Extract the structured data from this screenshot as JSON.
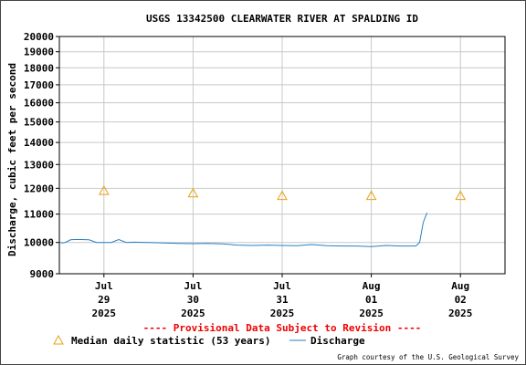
{
  "chart_data": {
    "type": "line",
    "title": "USGS 13342500 CLEARWATER RIVER AT SPALDING ID",
    "ylabel": "Discharge, cubic feet per second",
    "xlabel": "",
    "y_scale": "log",
    "ylim": [
      9000,
      20000
    ],
    "y_ticks": [
      9000,
      10000,
      11000,
      12000,
      13000,
      14000,
      15000,
      16000,
      17000,
      18000,
      19000,
      20000
    ],
    "xlim": [
      "2025-07-28 12:00",
      "2025-08-02 12:00"
    ],
    "x_ticks": [
      {
        "at": "2025-07-29 00:00",
        "lines": [
          "Jul",
          "29",
          "2025"
        ]
      },
      {
        "at": "2025-07-30 00:00",
        "lines": [
          "Jul",
          "30",
          "2025"
        ]
      },
      {
        "at": "2025-07-31 00:00",
        "lines": [
          "Jul",
          "31",
          "2025"
        ]
      },
      {
        "at": "2025-08-01 00:00",
        "lines": [
          "Aug",
          "01",
          "2025"
        ]
      },
      {
        "at": "2025-08-02 00:00",
        "lines": [
          "Aug",
          "02",
          "2025"
        ]
      }
    ],
    "grid": true,
    "legend_position": "bottom",
    "series": [
      {
        "name": "Median daily statistic (53 years)",
        "marker": "triangle",
        "color": "#e8a10f",
        "x": [
          "2025-07-29 00:00",
          "2025-07-30 00:00",
          "2025-07-31 00:00",
          "2025-08-01 00:00",
          "2025-08-02 00:00"
        ],
        "y": [
          11900,
          11800,
          11700,
          11700,
          11700
        ]
      },
      {
        "name": "Discharge",
        "marker": "line",
        "color": "#2a7fc0",
        "x": [
          "2025-07-28 12:00",
          "2025-07-28 13:00",
          "2025-07-28 14:00",
          "2025-07-28 15:00",
          "2025-07-28 16:00",
          "2025-07-28 18:00",
          "2025-07-28 20:00",
          "2025-07-28 22:00",
          "2025-07-29 02:00",
          "2025-07-29 04:00",
          "2025-07-29 06:00",
          "2025-07-29 08:00",
          "2025-07-29 12:00",
          "2025-07-29 16:00",
          "2025-07-29 20:00",
          "2025-07-30 00:00",
          "2025-07-30 04:00",
          "2025-07-30 08:00",
          "2025-07-30 12:00",
          "2025-07-30 16:00",
          "2025-07-30 20:00",
          "2025-07-31 00:00",
          "2025-07-31 04:00",
          "2025-07-31 08:00",
          "2025-07-31 12:00",
          "2025-07-31 16:00",
          "2025-07-31 20:00",
          "2025-08-01 00:00",
          "2025-08-01 04:00",
          "2025-08-01 08:00",
          "2025-08-01 12:00",
          "2025-08-01 13:00",
          "2025-08-01 14:00",
          "2025-08-01 15:00"
        ],
        "y": [
          10000,
          9980,
          10020,
          10090,
          10100,
          10100,
          10090,
          10000,
          10000,
          10100,
          10000,
          10010,
          10000,
          9980,
          9970,
          9960,
          9970,
          9950,
          9910,
          9900,
          9910,
          9900,
          9890,
          9930,
          9890,
          9880,
          9880,
          9860,
          9900,
          9880,
          9880,
          10000,
          10700,
          11050
        ]
      }
    ]
  },
  "banner": "---- Provisional Data Subject to Revision ----",
  "legend": {
    "median_label": "Median daily statistic (53 years)",
    "discharge_label": "Discharge"
  },
  "credit": "Graph courtesy of the U.S. Geological Survey",
  "colors": {
    "banner": "#ee0000",
    "grid": "#c8c8c8",
    "median": "#e8a10f",
    "discharge": "#2a7fc0"
  }
}
